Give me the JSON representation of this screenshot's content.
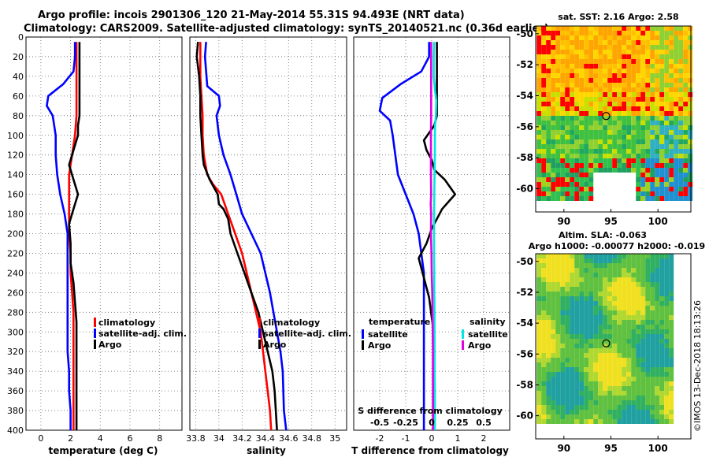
{
  "title": {
    "line1": "Argo profile: incois 2901306_120 21-May-2014 55.31S 94.493E (NRT data)",
    "line2": "Climatology: CARS2009. Satellite-adjusted climatology: synTS_20140521.nc (0.36d earlier)"
  },
  "colors": {
    "climatology": "#ff0000",
    "satellite": "#0000ff",
    "argo": "#000000",
    "sal_satellite": "#00e5e5",
    "sal_argo": "#e000e0"
  },
  "chart_data": [
    {
      "id": "temperature",
      "type": "line",
      "xlabel": "temperature (deg C)",
      "ylabel": "depth",
      "xlim": [
        -1,
        9.5
      ],
      "ylim": [
        400,
        0
      ],
      "xticks": [
        0,
        2,
        4,
        6,
        8
      ],
      "xtick_labels": [
        "0",
        "2",
        "4",
        "6",
        "8"
      ],
      "yticks": [
        0,
        20,
        40,
        60,
        80,
        100,
        120,
        140,
        160,
        180,
        200,
        220,
        240,
        260,
        280,
        300,
        320,
        340,
        360,
        380,
        400
      ],
      "grid": true,
      "legend": {
        "position": "lower-right",
        "entries": [
          "climatology",
          "satellite-adj. clim.",
          "Argo"
        ]
      },
      "series": [
        {
          "name": "climatology",
          "color_key": "climatology",
          "x": [
            2.4,
            2.4,
            2.4,
            2.4,
            2.4,
            2.3,
            2.1,
            1.9,
            1.9,
            1.9,
            1.9,
            2.0,
            2.0,
            2.1,
            2.2,
            2.2,
            2.2,
            2.2,
            2.2,
            2.2,
            2.2
          ],
          "y": [
            5,
            20,
            40,
            60,
            80,
            100,
            120,
            140,
            160,
            180,
            200,
            220,
            240,
            260,
            280,
            300,
            320,
            340,
            360,
            380,
            400
          ]
        },
        {
          "name": "satellite-adj. clim.",
          "color_key": "satellite",
          "x": [
            2.3,
            2.3,
            2.2,
            1.5,
            0.5,
            0.4,
            0.8,
            0.9,
            1.0,
            1.0,
            1.1,
            1.3,
            1.6,
            1.8,
            1.8,
            1.8,
            1.8,
            1.8,
            1.8,
            1.8,
            1.9,
            1.9,
            2.0,
            2.0,
            2.0
          ],
          "y": [
            5,
            20,
            35,
            48,
            60,
            70,
            80,
            90,
            100,
            120,
            140,
            160,
            180,
            200,
            220,
            240,
            260,
            280,
            300,
            320,
            340,
            360,
            380,
            390,
            400
          ]
        },
        {
          "name": "Argo",
          "color_key": "argo",
          "x": [
            2.6,
            2.6,
            2.6,
            2.6,
            2.6,
            2.5,
            2.5,
            2.3,
            2.1,
            1.9,
            2.2,
            2.5,
            2.2,
            1.9,
            2.0,
            2.0,
            2.2,
            2.3,
            2.4,
            2.4,
            2.4,
            2.4,
            2.4,
            2.4
          ],
          "y": [
            5,
            20,
            40,
            60,
            80,
            90,
            100,
            110,
            120,
            130,
            145,
            160,
            175,
            190,
            210,
            230,
            250,
            270,
            290,
            310,
            330,
            350,
            380,
            400
          ]
        }
      ]
    },
    {
      "id": "salinity",
      "type": "line",
      "xlabel": "salinity",
      "ylabel": "depth",
      "xlim": [
        33.75,
        35.1
      ],
      "ylim": [
        400,
        0
      ],
      "xticks": [
        33.8,
        34.0,
        34.2,
        34.4,
        34.6,
        34.8,
        35.0
      ],
      "xtick_labels": [
        "33.8",
        "34",
        "34.2",
        "34.4",
        "34.6",
        "34.8",
        "35"
      ],
      "yticks": [
        0,
        20,
        40,
        60,
        80,
        100,
        120,
        140,
        160,
        180,
        200,
        220,
        240,
        260,
        280,
        300,
        320,
        340,
        360,
        380,
        400
      ],
      "grid": true,
      "legend": {
        "position": "lower-right",
        "entries": [
          "climatology",
          "satellite-adj. clim.",
          "Argo"
        ]
      },
      "series": [
        {
          "name": "climatology",
          "color_key": "climatology",
          "x": [
            33.84,
            33.84,
            33.85,
            33.86,
            33.86,
            33.87,
            33.9,
            33.95,
            34.02,
            34.08,
            34.14,
            34.2,
            34.24,
            34.28,
            34.32,
            34.36,
            34.38,
            34.4,
            34.42,
            34.44,
            34.45
          ],
          "y": [
            5,
            40,
            60,
            80,
            100,
            120,
            140,
            150,
            160,
            180,
            200,
            220,
            240,
            260,
            280,
            300,
            320,
            340,
            360,
            380,
            400
          ]
        },
        {
          "name": "satellite-adj. clim.",
          "color_key": "satellite",
          "x": [
            33.89,
            33.88,
            33.9,
            34.0,
            34.01,
            33.98,
            34.0,
            34.04,
            34.1,
            34.15,
            34.2,
            34.28,
            34.36,
            34.4,
            34.44,
            34.47,
            34.5,
            34.53,
            34.55,
            34.56,
            34.58
          ],
          "y": [
            5,
            20,
            50,
            60,
            70,
            80,
            100,
            120,
            140,
            160,
            180,
            200,
            220,
            240,
            260,
            280,
            300,
            320,
            340,
            380,
            400
          ]
        },
        {
          "name": "Argo",
          "color_key": "argo",
          "x": [
            33.82,
            33.81,
            33.83,
            33.84,
            33.84,
            33.85,
            33.86,
            33.87,
            33.92,
            33.99,
            34.0,
            34.04,
            34.08,
            34.1,
            34.16,
            34.22,
            34.28,
            34.34,
            34.38,
            34.42,
            34.46,
            34.48,
            34.5
          ],
          "y": [
            5,
            20,
            40,
            60,
            80,
            100,
            120,
            130,
            145,
            160,
            170,
            175,
            185,
            200,
            220,
            240,
            260,
            280,
            300,
            320,
            340,
            360,
            400
          ]
        }
      ]
    },
    {
      "id": "difference",
      "type": "line",
      "xlabel": "T difference from climatology",
      "xlabel_top": "S difference  from climatology",
      "ylabel": "depth",
      "xlim": [
        -3.0,
        3.0
      ],
      "ylim": [
        400,
        0
      ],
      "xticks": [
        -2,
        -1,
        0,
        1,
        2
      ],
      "xtick_labels": [
        "-2",
        "-1",
        "0",
        "1",
        "2"
      ],
      "s_ticks": [
        -0.5,
        -0.25,
        0,
        0.25,
        0.5
      ],
      "s_tick_labels": [
        "-0.5",
        "-0.25",
        "0",
        "0.25",
        "0.5"
      ],
      "yticks": [
        0,
        20,
        40,
        60,
        80,
        100,
        120,
        140,
        160,
        180,
        200,
        220,
        240,
        260,
        280,
        300,
        320,
        340,
        360,
        380,
        400
      ],
      "grid": true,
      "legend": {
        "position": "lower-center",
        "temperature_heading": "temperature",
        "salinity_heading": "salinity",
        "entries": [
          "satellite",
          "Argo"
        ]
      },
      "series": [
        {
          "name": "T satellite",
          "color_key": "satellite",
          "x": [
            -0.1,
            -0.1,
            -0.4,
            -1.2,
            -1.9,
            -2.0,
            -1.6,
            -1.5,
            -1.4,
            -1.3,
            -1.0,
            -0.7,
            -0.5,
            -0.4,
            -0.3,
            -0.3,
            -0.3,
            -0.3,
            -0.3,
            -0.3,
            -0.3,
            -0.3,
            -0.3
          ],
          "y": [
            5,
            20,
            35,
            48,
            62,
            75,
            85,
            100,
            120,
            140,
            160,
            180,
            200,
            220,
            240,
            260,
            280,
            300,
            320,
            340,
            360,
            380,
            400
          ]
        },
        {
          "name": "T Argo",
          "color_key": "argo",
          "x": [
            0.2,
            0.2,
            0.2,
            0.2,
            0.2,
            0.1,
            -0.3,
            -0.2,
            0.0,
            0.1,
            0.5,
            0.9,
            0.4,
            0.0,
            -0.2,
            -0.5,
            -0.3,
            -0.1,
            0.0,
            0.1,
            0.1,
            0.1,
            0.1,
            0.1
          ],
          "y": [
            5,
            20,
            40,
            60,
            80,
            90,
            105,
            115,
            125,
            135,
            145,
            160,
            175,
            195,
            210,
            225,
            245,
            265,
            285,
            305,
            330,
            360,
            380,
            400
          ]
        },
        {
          "name": "S satellite",
          "color_key": "sal_satellite",
          "x": [
            0.09,
            0.08,
            0.08,
            0.13,
            0.18,
            0.16,
            0.13,
            0.12,
            0.12,
            0.11,
            0.1,
            0.09,
            0.09,
            0.09,
            0.1,
            0.1,
            0.11,
            0.11,
            0.11,
            0.11,
            0.12,
            0.12,
            0.12
          ],
          "y": [
            5,
            20,
            40,
            55,
            65,
            80,
            90,
            100,
            120,
            140,
            160,
            180,
            200,
            220,
            240,
            260,
            280,
            300,
            320,
            340,
            360,
            380,
            400
          ]
        },
        {
          "name": "S Argo",
          "color_key": "sal_argo",
          "x": [
            -0.02,
            -0.02,
            -0.02,
            -0.02,
            -0.02,
            -0.03,
            -0.03,
            -0.03,
            -0.02,
            -0.04,
            -0.02,
            -0.03,
            -0.01,
            0.0,
            0.02,
            0.03,
            0.04,
            0.05,
            0.05,
            0.05,
            0.05,
            0.05
          ],
          "y": [
            5,
            20,
            40,
            60,
            80,
            100,
            120,
            140,
            160,
            170,
            180,
            200,
            220,
            240,
            260,
            280,
            300,
            320,
            340,
            360,
            380,
            400
          ]
        }
      ]
    },
    {
      "id": "sst_map",
      "type": "heatmap",
      "title": "sat. SST: 2.16  Argo: 2.58",
      "xlim": [
        87,
        103.5
      ],
      "ylim": [
        -61.5,
        -49.5
      ],
      "xticks": [
        90,
        95,
        100
      ],
      "xtick_labels": [
        "90",
        "95",
        "100"
      ],
      "yticks": [
        -50,
        -52,
        -54,
        -56,
        -58,
        -60
      ],
      "ytick_labels": [
        "-50",
        "-52",
        "-54",
        "-56",
        "-58",
        "-60"
      ],
      "marker": {
        "lon": 94.493,
        "lat": -55.31
      }
    },
    {
      "id": "sla_map",
      "type": "heatmap",
      "title": "Altim. SLA: -0.063",
      "subtitle": "Argo h1000: -0.00077  h2000: -0.019",
      "xlim": [
        87,
        103.5
      ],
      "ylim": [
        -61.5,
        -49.5
      ],
      "xticks": [
        90,
        95,
        100
      ],
      "xtick_labels": [
        "90",
        "95",
        "100"
      ],
      "yticks": [
        -50,
        -52,
        -54,
        -56,
        -58,
        -60
      ],
      "ytick_labels": [
        "-50",
        "-52",
        "-54",
        "-56",
        "-58",
        "-60"
      ],
      "marker": {
        "lon": 94.493,
        "lat": -55.31
      }
    }
  ],
  "credit": "©IMOS 13-Dec-2018 18:13:26"
}
